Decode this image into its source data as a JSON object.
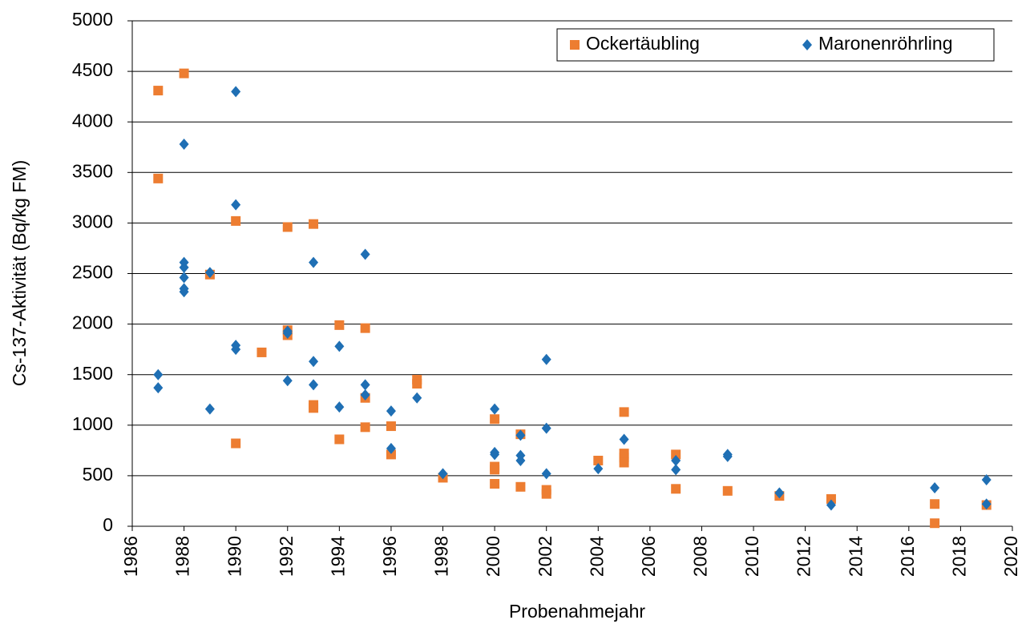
{
  "chart_data": {
    "type": "scatter",
    "xlabel": "Probenahmejahr",
    "ylabel": "Cs-137-Aktivität (Bq/kg FM)",
    "xlim": [
      1986,
      2020
    ],
    "xticks": [
      1986,
      1988,
      1990,
      1992,
      1994,
      1996,
      1998,
      2000,
      2002,
      2004,
      2006,
      2008,
      2010,
      2012,
      2014,
      2016,
      2018,
      2020
    ],
    "ylim": [
      0,
      5000
    ],
    "yticks": [
      0,
      500,
      1000,
      1500,
      2000,
      2500,
      3000,
      3500,
      4000,
      4500,
      5000
    ],
    "grid": true,
    "legend": "top-right",
    "series": [
      {
        "name": "Ockertäubling",
        "color": "#ed7d31",
        "marker": "square",
        "x": [
          1987,
          1987,
          1988,
          1989,
          1990,
          1990,
          1991,
          1992,
          1992,
          1992,
          1993,
          1993,
          1993,
          1994,
          1994,
          1995,
          1995,
          1995,
          1996,
          1996,
          1997,
          1997,
          1998,
          2000,
          2000,
          2000,
          2000,
          2001,
          2001,
          2002,
          2002,
          2004,
          2005,
          2005,
          2005,
          2005,
          2007,
          2007,
          2009,
          2011,
          2013,
          2017,
          2017,
          2019
        ],
        "values": [
          4310,
          3440,
          4480,
          2490,
          3020,
          820,
          1720,
          2960,
          1940,
          1890,
          2990,
          1200,
          1170,
          1990,
          860,
          1960,
          1270,
          980,
          990,
          710,
          1450,
          1410,
          480,
          1060,
          590,
          560,
          420,
          910,
          390,
          360,
          320,
          650,
          1130,
          720,
          680,
          630,
          710,
          370,
          350,
          300,
          270,
          220,
          30,
          210
        ]
      },
      {
        "name": "Maronenröhrling",
        "color": "#1f6fb4",
        "marker": "diamond",
        "x": [
          1987,
          1987,
          1988,
          1988,
          1988,
          1988,
          1988,
          1988,
          1989,
          1989,
          1990,
          1990,
          1990,
          1990,
          1992,
          1992,
          1992,
          1993,
          1993,
          1993,
          1994,
          1994,
          1995,
          1995,
          1995,
          1996,
          1996,
          1997,
          1998,
          2000,
          2000,
          2000,
          2001,
          2001,
          2001,
          2002,
          2002,
          2002,
          2004,
          2005,
          2007,
          2007,
          2009,
          2009,
          2011,
          2013,
          2017,
          2019,
          2019
        ],
        "values": [
          1500,
          1370,
          3780,
          2610,
          2560,
          2460,
          2350,
          2320,
          2510,
          1160,
          4300,
          3180,
          1790,
          1750,
          1930,
          1910,
          1440,
          2610,
          1630,
          1400,
          1780,
          1180,
          2690,
          1400,
          1300,
          1140,
          770,
          1270,
          520,
          1160,
          730,
          710,
          900,
          700,
          650,
          1650,
          970,
          520,
          570,
          860,
          650,
          560,
          710,
          690,
          330,
          210,
          380,
          460,
          220
        ]
      }
    ]
  }
}
